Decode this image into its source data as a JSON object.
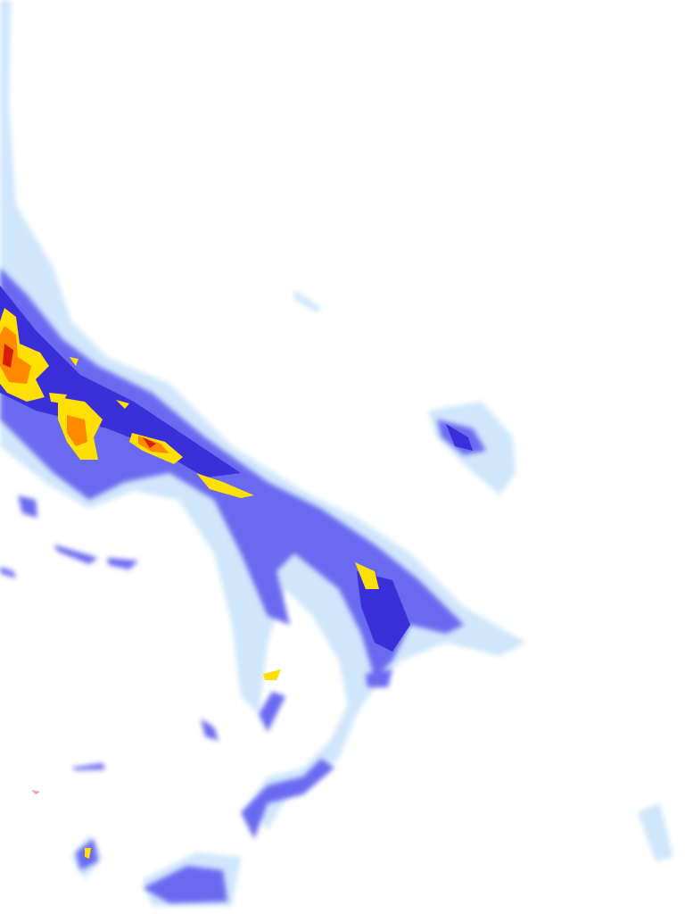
{
  "map": {
    "type": "precipitation-radar-tile",
    "colors": {
      "background": "#ffffff",
      "very_light": "#cfe6fb",
      "light": "#9ccaf5",
      "moderate": "#6a6af0",
      "heavy": "#3a2fd8",
      "intense": "#ffe000",
      "severe": "#ff8a00",
      "extreme": "#d81e00"
    }
  }
}
